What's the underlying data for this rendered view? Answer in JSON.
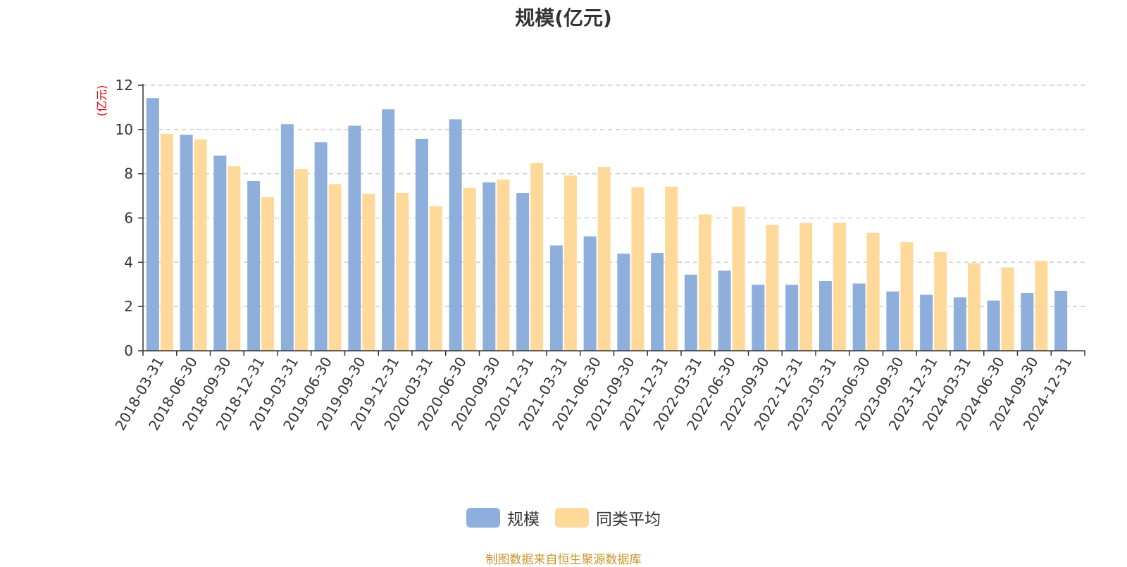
{
  "chart_data": {
    "type": "bar",
    "title": "规模(亿元)",
    "ylabel": "(亿元)",
    "xlabel": "",
    "ylim": [
      0,
      12
    ],
    "yticks": [
      "0",
      "2",
      "4",
      "6",
      "8",
      "10",
      "12"
    ],
    "grid": true,
    "legend_position": "bottom",
    "categories": [
      "2018-03-31",
      "2018-06-30",
      "2018-09-30",
      "2018-12-31",
      "2019-03-31",
      "2019-06-30",
      "2019-09-30",
      "2019-12-31",
      "2020-03-31",
      "2020-06-30",
      "2020-09-30",
      "2020-12-31",
      "2021-03-31",
      "2021-06-30",
      "2021-09-30",
      "2021-12-31",
      "2022-03-31",
      "2022-06-30",
      "2022-09-30",
      "2022-12-31",
      "2023-03-31",
      "2023-06-30",
      "2023-09-30",
      "2023-12-31",
      "2024-03-31",
      "2024-06-30",
      "2024-09-30",
      "2024-12-31"
    ],
    "series": [
      {
        "name": "规模",
        "color": "#8eaedb",
        "values": [
          11.42,
          9.76,
          8.82,
          7.67,
          10.24,
          9.42,
          10.17,
          10.91,
          9.58,
          10.46,
          7.61,
          7.13,
          4.76,
          5.17,
          4.39,
          4.42,
          3.44,
          3.62,
          2.98,
          2.98,
          3.15,
          3.04,
          2.68,
          2.53,
          2.41,
          2.27,
          2.61,
          2.71
        ]
      },
      {
        "name": "同类平均",
        "color": "#ffd99a",
        "values": [
          9.81,
          9.55,
          8.34,
          6.95,
          8.21,
          7.53,
          7.1,
          7.13,
          6.54,
          7.36,
          7.74,
          8.49,
          7.92,
          8.31,
          7.39,
          7.42,
          6.16,
          6.51,
          5.69,
          5.78,
          5.79,
          5.33,
          4.91,
          4.46,
          3.95,
          3.77,
          4.06,
          null
        ]
      }
    ]
  },
  "source_note": "制图数据来自恒生聚源数据库"
}
